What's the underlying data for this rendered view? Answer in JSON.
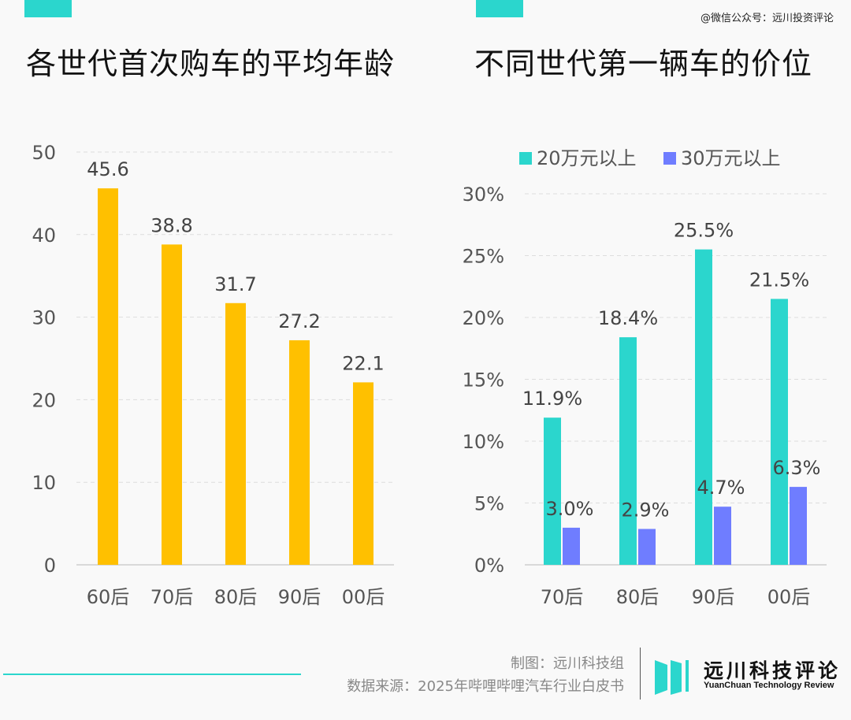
{
  "watermark": "@微信公众号：远川投资评论",
  "colors": {
    "accent": "#2bd6cd",
    "yellow": "#ffc000",
    "teal": "#2bd6cd",
    "blue": "#6f7dff"
  },
  "chart_data": [
    {
      "type": "bar",
      "title": "各世代首次购车的平均年龄",
      "categories": [
        "60后",
        "70后",
        "80后",
        "90后",
        "00后"
      ],
      "values": [
        45.6,
        38.8,
        31.7,
        27.2,
        22.1
      ],
      "labels": [
        "45.6",
        "38.8",
        "31.7",
        "27.2",
        "22.1"
      ],
      "yticks": [
        "0",
        "10",
        "20",
        "30",
        "40",
        "50"
      ],
      "ylim": [
        0,
        50
      ],
      "xlabel": "",
      "ylabel": "",
      "grid": true
    },
    {
      "type": "bar",
      "title": "不同世代第一辆车的价位",
      "categories": [
        "70后",
        "80后",
        "90后",
        "00后"
      ],
      "series": [
        {
          "name": "20万元以上",
          "values": [
            11.9,
            18.4,
            25.5,
            21.5
          ],
          "labels": [
            "11.9%",
            "18.4%",
            "25.5%",
            "21.5%"
          ]
        },
        {
          "name": "30万元以上",
          "values": [
            3.0,
            2.9,
            4.7,
            6.3
          ],
          "labels": [
            "3.0%",
            "2.9%",
            "4.7%",
            "6.3%"
          ]
        }
      ],
      "yticks": [
        "0%",
        "5%",
        "10%",
        "15%",
        "20%",
        "25%",
        "30%"
      ],
      "ylim": [
        0,
        30
      ],
      "legend": "top",
      "xlabel": "",
      "ylabel": "",
      "grid": true
    }
  ],
  "footer": {
    "credit": "制图：远川科技组",
    "source": "数据来源：2025年哔哩哔哩汽车行业白皮书",
    "logo_cn": "远川科技评论",
    "logo_en": "YuanChuan Technology Review"
  }
}
